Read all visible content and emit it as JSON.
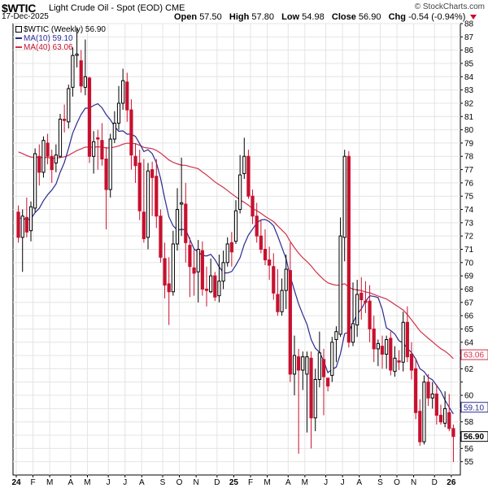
{
  "header": {
    "symbol": "$WTIC",
    "description": "Light Crude Oil - Spot (EOD)",
    "exchange": "CME",
    "date": "17-Dec-2025",
    "brand": "© StockCharts.com",
    "open_label": "Open",
    "open": "57.50",
    "high_label": "High",
    "high": "57.80",
    "low_label": "Low",
    "low": "54.98",
    "close_label": "Close",
    "close": "56.90",
    "chg_label": "Chg",
    "chg": "-0.54 (-0.94%)"
  },
  "legend": {
    "price": "$WTIC (Weekly) 56.90",
    "ma10": "MA(10) 59.10",
    "ma40": "MA(40) 63.06"
  },
  "colors": {
    "up": "#000000",
    "down": "#c8102e",
    "ma10": "#2a2a90",
    "ma40": "#d0304a",
    "grid": "#e4e4e4",
    "axis": "#000000"
  },
  "chart_data": {
    "type": "candlestick",
    "title": "$WTIC",
    "interval": "weekly",
    "ylim": [
      54,
      88
    ],
    "yticks": [
      55,
      56,
      57,
      58,
      59,
      60,
      61,
      62,
      63,
      64,
      65,
      66,
      67,
      68,
      69,
      70,
      71,
      72,
      73,
      74,
      75,
      76,
      77,
      78,
      79,
      80,
      81,
      82,
      83,
      84,
      85,
      86,
      87,
      88
    ],
    "ytick_labels": [
      "55",
      "56",
      "",
      "58",
      "",
      "60",
      "",
      "62",
      "",
      "64",
      "65",
      "66",
      "67",
      "68",
      "69",
      "70",
      "71",
      "72",
      "73",
      "74",
      "75",
      "76",
      "77",
      "78",
      "79",
      "80",
      "81",
      "82",
      "83",
      "84",
      "85",
      "86",
      "87",
      "88"
    ],
    "xlabels": [
      "24",
      "F",
      "M",
      "A",
      "M",
      "J",
      "J",
      "A",
      "S",
      "O",
      "N",
      "D",
      "25",
      "F",
      "M",
      "A",
      "M",
      "J",
      "J",
      "A",
      "S",
      "O",
      "N",
      "D",
      "26"
    ],
    "xlabel_weeks": [
      0,
      4,
      8,
      13,
      17,
      22,
      26,
      30,
      35,
      39,
      43,
      48,
      52,
      56,
      60,
      65,
      69,
      74,
      78,
      82,
      87,
      91,
      95,
      100,
      104
    ],
    "last_values": {
      "close": 56.9,
      "ma10": 59.1,
      "ma40": 63.06
    },
    "candles": [
      [
        73.8,
        71.9,
        74.3,
        71.5
      ],
      [
        71.9,
        73.5,
        74.0,
        69.3
      ],
      [
        73.4,
        72.3,
        74.9,
        71.9
      ],
      [
        72.4,
        74.2,
        74.6,
        71.6
      ],
      [
        74.1,
        78.2,
        78.6,
        73.8
      ],
      [
        78.0,
        76.8,
        78.9,
        75.8
      ],
      [
        76.8,
        79.2,
        79.5,
        76.4
      ],
      [
        79.0,
        78.0,
        79.7,
        77.4
      ],
      [
        78.0,
        77.0,
        78.5,
        76.0
      ],
      [
        77.5,
        78.1,
        78.9,
        76.8
      ],
      [
        78.0,
        80.8,
        81.2,
        77.9
      ],
      [
        80.8,
        80.7,
        81.9,
        79.8
      ],
      [
        80.6,
        83.1,
        83.4,
        80.1
      ],
      [
        83.2,
        85.6,
        86.2,
        82.5
      ],
      [
        85.6,
        85.7,
        87.7,
        84.7
      ],
      [
        85.2,
        83.3,
        86.0,
        82.8
      ],
      [
        83.2,
        84.0,
        86.8,
        82.6
      ],
      [
        83.9,
        78.0,
        84.0,
        77.5
      ],
      [
        78.0,
        79.1,
        79.9,
        76.7
      ],
      [
        79.4,
        79.3,
        80.0,
        77.0
      ],
      [
        79.2,
        77.8,
        80.5,
        77.3
      ],
      [
        77.8,
        75.5,
        78.7,
        72.5
      ],
      [
        75.5,
        79.3,
        79.7,
        74.9
      ],
      [
        79.3,
        80.5,
        81.4,
        79.0
      ],
      [
        80.5,
        82.0,
        83.3,
        80.0
      ],
      [
        82.0,
        83.7,
        84.6,
        81.5
      ],
      [
        83.6,
        81.5,
        84.3,
        80.6
      ],
      [
        81.5,
        78.1,
        82.3,
        77.0
      ],
      [
        78.0,
        77.3,
        79.0,
        76.0
      ],
      [
        77.5,
        73.9,
        78.5,
        73.2
      ],
      [
        73.8,
        71.8,
        77.8,
        71.5
      ],
      [
        71.9,
        76.9,
        77.5,
        71.0
      ],
      [
        77.0,
        76.4,
        77.6,
        73.5
      ],
      [
        76.5,
        73.5,
        77.8,
        72.6
      ],
      [
        73.5,
        70.4,
        74.0,
        70.0
      ],
      [
        70.3,
        68.3,
        71.5,
        67.3
      ],
      [
        68.4,
        67.8,
        70.4,
        65.3
      ],
      [
        67.8,
        71.4,
        72.4,
        67.5
      ],
      [
        71.4,
        74.0,
        75.6,
        70.9
      ],
      [
        74.4,
        74.5,
        77.9,
        72.0
      ],
      [
        74.4,
        71.5,
        76.0,
        70.0
      ],
      [
        71.3,
        69.7,
        71.9,
        67.4
      ],
      [
        69.6,
        69.2,
        71.0,
        67.5
      ],
      [
        69.3,
        71.0,
        71.7,
        67.0
      ],
      [
        70.9,
        68.0,
        71.6,
        67.5
      ],
      [
        68.0,
        67.9,
        69.7,
        66.7
      ],
      [
        67.8,
        69.0,
        70.3,
        67.7
      ],
      [
        69.0,
        67.4,
        69.3,
        67.1
      ],
      [
        67.5,
        68.6,
        70.6,
        67.0
      ],
      [
        68.6,
        70.0,
        70.9,
        68.0
      ],
      [
        70.0,
        71.4,
        71.9,
        69.7
      ],
      [
        71.5,
        70.8,
        72.3,
        69.7
      ],
      [
        71.6,
        73.9,
        74.7,
        71.4
      ],
      [
        74.0,
        76.6,
        78.1,
        73.7
      ],
      [
        76.7,
        78.0,
        79.4,
        76.3
      ],
      [
        78.0,
        75.0,
        78.5,
        74.8
      ],
      [
        75.0,
        73.5,
        75.5,
        72.9
      ],
      [
        73.5,
        72.0,
        74.5,
        71.5
      ],
      [
        72.0,
        71.0,
        73.2,
        70.7
      ],
      [
        71.0,
        70.2,
        72.5,
        69.8
      ],
      [
        70.2,
        69.8,
        71.2,
        68.7
      ],
      [
        69.7,
        67.7,
        70.7,
        67.2
      ],
      [
        67.6,
        66.3,
        69.5,
        66.0
      ],
      [
        66.3,
        67.9,
        68.8,
        66.0
      ],
      [
        67.9,
        69.5,
        70.6,
        66.5
      ],
      [
        69.4,
        61.6,
        71.5,
        61.0
      ],
      [
        61.6,
        63.0,
        64.5,
        60.0
      ],
      [
        62.9,
        61.9,
        63.5,
        55.6
      ],
      [
        61.9,
        62.9,
        63.3,
        60.4
      ],
      [
        61.6,
        62.9,
        63.3,
        57.2
      ],
      [
        62.8,
        58.3,
        63.3,
        56.0
      ],
      [
        58.3,
        61.2,
        62.0,
        57.3
      ],
      [
        61.2,
        63.2,
        64.8,
        60.6
      ],
      [
        62.7,
        61.4,
        63.5,
        58.5
      ],
      [
        61.3,
        60.7,
        61.3,
        60.3
      ],
      [
        61.5,
        64.0,
        64.4,
        61.0
      ],
      [
        64.2,
        64.8,
        65.2,
        62.5
      ],
      [
        64.6,
        72.0,
        73.4,
        64.4
      ],
      [
        71.9,
        78.0,
        78.5,
        70.1
      ],
      [
        78.0,
        64.0,
        78.4,
        63.6
      ],
      [
        64.0,
        65.4,
        68.5,
        63.7
      ],
      [
        65.3,
        67.6,
        68.7,
        64.4
      ],
      [
        67.7,
        67.2,
        68.9,
        65.7
      ],
      [
        67.1,
        67.0,
        68.6,
        66.2
      ],
      [
        67.1,
        65.0,
        68.3,
        64.0
      ],
      [
        65.0,
        63.5,
        66.0,
        62.5
      ],
      [
        63.5,
        63.9,
        64.2,
        62.2
      ],
      [
        63.7,
        63.1,
        64.5,
        62.0
      ],
      [
        63.1,
        64.2,
        64.5,
        62.0
      ],
      [
        64.3,
        61.9,
        64.8,
        61.5
      ],
      [
        61.8,
        62.8,
        63.7,
        61.4
      ],
      [
        62.6,
        62.5,
        63.4,
        61.9
      ],
      [
        62.5,
        65.5,
        66.3,
        61.8
      ],
      [
        65.5,
        62.9,
        66.7,
        62.5
      ],
      [
        63.1,
        61.9,
        64.0,
        61.2
      ],
      [
        62.0,
        58.7,
        62.7,
        58.2
      ],
      [
        58.8,
        56.5,
        59.7,
        56.2
      ],
      [
        56.5,
        61.0,
        61.5,
        56.3
      ],
      [
        61.0,
        59.8,
        61.6,
        59.2
      ],
      [
        59.8,
        60.1,
        61.0,
        59.0
      ],
      [
        60.1,
        58.5,
        60.8,
        57.8
      ],
      [
        58.5,
        58.0,
        59.3,
        57.8
      ],
      [
        57.9,
        59.0,
        60.3,
        57.6
      ],
      [
        58.7,
        57.5,
        60.1,
        57.3
      ],
      [
        57.5,
        56.9,
        57.8,
        54.98
      ]
    ]
  }
}
